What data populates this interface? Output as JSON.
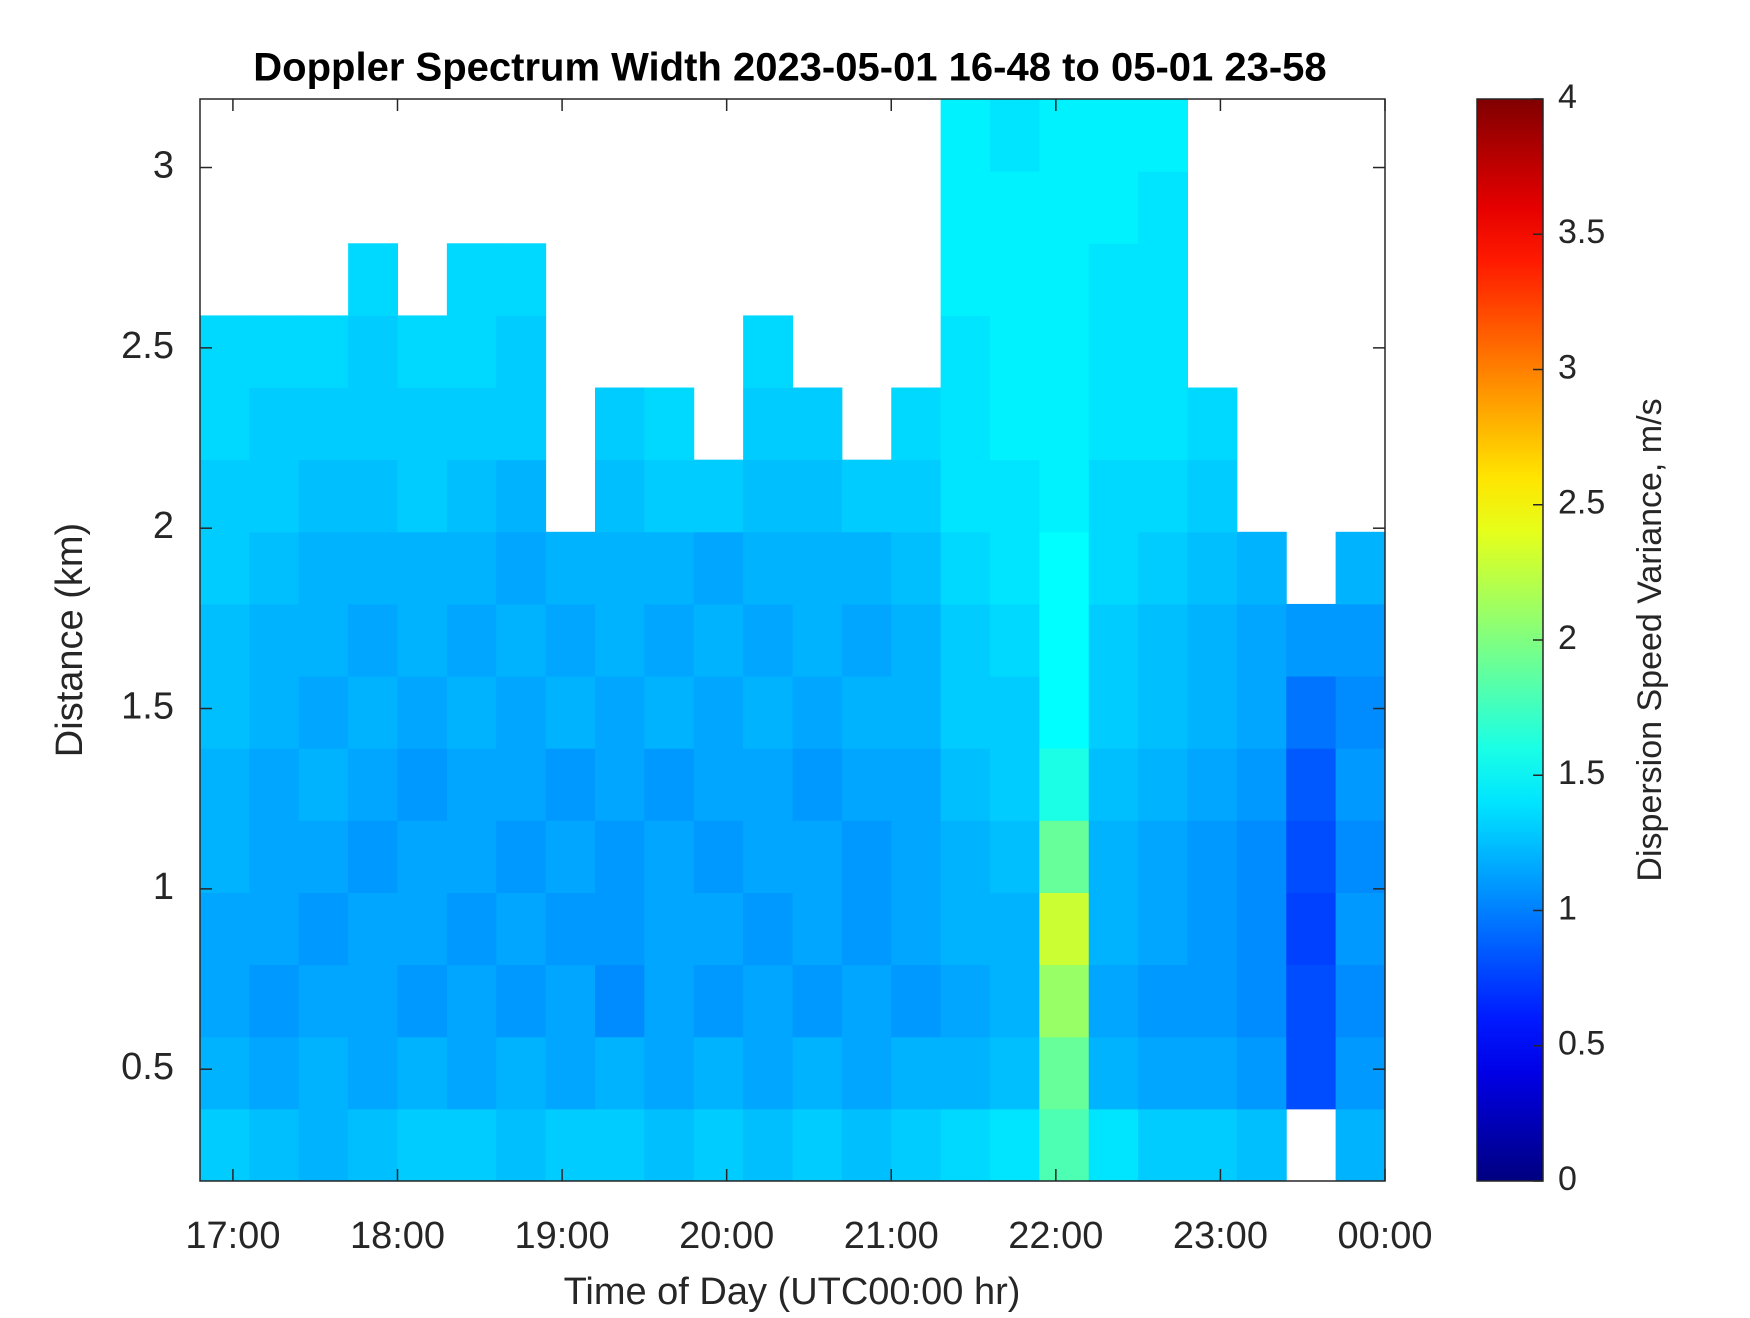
{
  "chart_data": {
    "type": "heatmap",
    "title": "Doppler Spectrum Width 2023-05-01 16-48 to 05-01 23-58",
    "xlabel": "Time of Day (UTC00:00 hr)",
    "ylabel": "Distance (km)",
    "colorbar_label": "Dispersion Speed Variance, m/s",
    "colormap": "jet",
    "xlim": [
      16.8,
      24
    ],
    "ylim": [
      0.19,
      3.19
    ],
    "clim": [
      0,
      4
    ],
    "xticks": [
      {
        "value": 17,
        "label": "17:00"
      },
      {
        "value": 18,
        "label": "18:00"
      },
      {
        "value": 19,
        "label": "19:00"
      },
      {
        "value": 20,
        "label": "20:00"
      },
      {
        "value": 21,
        "label": "21:00"
      },
      {
        "value": 22,
        "label": "22:00"
      },
      {
        "value": 23,
        "label": "23:00"
      },
      {
        "value": 24,
        "label": "00:00"
      }
    ],
    "yticks": [
      0.5,
      1,
      1.5,
      2,
      2.5,
      3
    ],
    "cticks": [
      0,
      0.5,
      1,
      1.5,
      2,
      2.5,
      3,
      3.5,
      4
    ],
    "x": [
      16.95,
      17.25,
      17.55,
      17.85,
      18.15,
      18.45,
      18.75,
      19.05,
      19.35,
      19.65,
      19.95,
      20.25,
      20.55,
      20.85,
      21.15,
      21.45,
      21.75,
      22.05,
      22.35,
      22.65,
      22.95,
      23.25,
      23.55,
      23.85
    ],
    "y": [
      0.29,
      0.49,
      0.69,
      0.89,
      1.09,
      1.29,
      1.49,
      1.69,
      1.89,
      2.09,
      2.29,
      2.49,
      2.69,
      2.89,
      3.09
    ],
    "z": [
      [
        1.3,
        1.25,
        1.2,
        1.25,
        1.3,
        1.3,
        1.25,
        1.3,
        1.3,
        1.25,
        1.3,
        1.25,
        1.3,
        1.25,
        1.3,
        1.35,
        1.4,
        1.8,
        1.4,
        1.3,
        1.3,
        1.25,
        null,
        1.2
      ],
      [
        1.2,
        1.15,
        1.2,
        1.15,
        1.2,
        1.15,
        1.2,
        1.15,
        1.2,
        1.15,
        1.2,
        1.15,
        1.2,
        1.15,
        1.2,
        1.2,
        1.25,
        1.9,
        1.2,
        1.15,
        1.15,
        1.1,
        0.8,
        1.1
      ],
      [
        1.15,
        1.1,
        1.15,
        1.15,
        1.1,
        1.15,
        1.1,
        1.15,
        1.05,
        1.15,
        1.1,
        1.15,
        1.1,
        1.15,
        1.1,
        1.15,
        1.2,
        2.1,
        1.15,
        1.1,
        1.1,
        1.05,
        0.8,
        1.05
      ],
      [
        1.15,
        1.15,
        1.1,
        1.15,
        1.15,
        1.1,
        1.15,
        1.1,
        1.1,
        1.15,
        1.15,
        1.1,
        1.15,
        1.1,
        1.15,
        1.2,
        1.2,
        2.3,
        1.2,
        1.15,
        1.1,
        1.05,
        0.75,
        1.1
      ],
      [
        1.2,
        1.15,
        1.15,
        1.1,
        1.15,
        1.15,
        1.1,
        1.15,
        1.1,
        1.15,
        1.1,
        1.15,
        1.15,
        1.1,
        1.15,
        1.2,
        1.25,
        1.9,
        1.2,
        1.15,
        1.1,
        1.05,
        0.8,
        1.05
      ],
      [
        1.2,
        1.15,
        1.2,
        1.15,
        1.1,
        1.15,
        1.15,
        1.1,
        1.15,
        1.1,
        1.15,
        1.15,
        1.1,
        1.15,
        1.15,
        1.25,
        1.3,
        1.6,
        1.25,
        1.2,
        1.15,
        1.1,
        0.85,
        1.1
      ],
      [
        1.25,
        1.2,
        1.15,
        1.2,
        1.15,
        1.2,
        1.15,
        1.2,
        1.15,
        1.2,
        1.15,
        1.2,
        1.15,
        1.2,
        1.2,
        1.3,
        1.3,
        1.5,
        1.3,
        1.25,
        1.2,
        1.15,
        0.95,
        1.05
      ],
      [
        1.25,
        1.2,
        1.2,
        1.15,
        1.2,
        1.15,
        1.2,
        1.15,
        1.2,
        1.15,
        1.2,
        1.15,
        1.2,
        1.15,
        1.2,
        1.3,
        1.35,
        1.5,
        1.3,
        1.25,
        1.2,
        1.15,
        1.1,
        1.1
      ],
      [
        1.3,
        1.25,
        1.2,
        1.2,
        1.2,
        1.2,
        1.15,
        1.2,
        1.2,
        1.2,
        1.15,
        1.2,
        1.2,
        1.2,
        1.25,
        1.35,
        1.4,
        1.5,
        1.35,
        1.3,
        1.25,
        1.2,
        null,
        1.2
      ],
      [
        1.3,
        1.3,
        1.25,
        1.25,
        1.3,
        1.25,
        1.2,
        null,
        1.25,
        1.3,
        1.3,
        1.25,
        1.25,
        1.3,
        1.3,
        1.4,
        1.4,
        1.45,
        1.35,
        1.35,
        1.3,
        null,
        null,
        null
      ],
      [
        1.35,
        1.3,
        1.3,
        1.3,
        1.3,
        1.3,
        1.3,
        null,
        1.3,
        1.35,
        null,
        1.3,
        1.3,
        null,
        1.35,
        1.4,
        1.45,
        1.45,
        1.4,
        1.4,
        1.35,
        null,
        null,
        null
      ],
      [
        1.35,
        1.35,
        1.35,
        1.3,
        1.35,
        1.35,
        1.3,
        null,
        null,
        null,
        null,
        1.35,
        null,
        null,
        null,
        1.4,
        1.45,
        1.45,
        1.4,
        1.4,
        null,
        null,
        null,
        null
      ],
      [
        null,
        null,
        null,
        1.35,
        null,
        1.35,
        1.35,
        null,
        null,
        null,
        null,
        null,
        null,
        null,
        null,
        1.45,
        1.45,
        1.45,
        1.4,
        1.4,
        null,
        null,
        null,
        null
      ],
      [
        null,
        null,
        null,
        null,
        null,
        null,
        null,
        null,
        null,
        null,
        null,
        null,
        null,
        null,
        null,
        1.45,
        1.45,
        1.45,
        1.45,
        1.4,
        null,
        null,
        null,
        null
      ],
      [
        null,
        null,
        null,
        null,
        null,
        null,
        null,
        null,
        null,
        null,
        null,
        null,
        null,
        null,
        null,
        1.45,
        1.4,
        1.45,
        1.45,
        1.45,
        null,
        null,
        null,
        null
      ]
    ]
  }
}
